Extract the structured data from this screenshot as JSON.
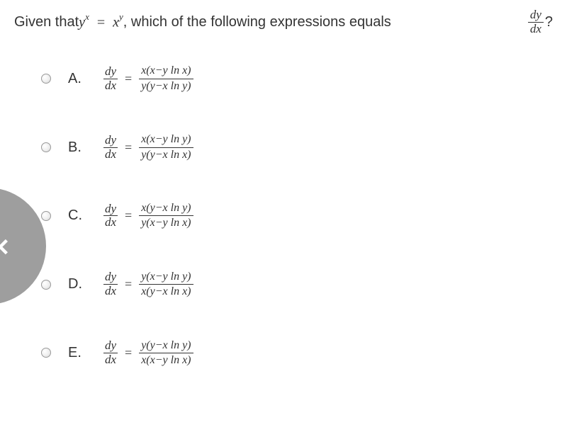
{
  "question": {
    "prefix": "Given that ",
    "lhs_base": "y",
    "lhs_exp": "x",
    "eq": " = ",
    "rhs_base": "x",
    "rhs_exp": "y",
    "middle": ", which of the following expressions equals ",
    "frac_num": "dy",
    "frac_den": "dx",
    "suffix": "?"
  },
  "derivative": {
    "num": "dy",
    "den": "dx"
  },
  "options": [
    {
      "label": "A.",
      "num": "x(x−y ln x)",
      "den": "y(y−x ln y)"
    },
    {
      "label": "B.",
      "num": "x(x−y ln y)",
      "den": "y(y−x ln x)"
    },
    {
      "label": "C.",
      "num": "x(y−x ln y)",
      "den": "y(x−y ln x)"
    },
    {
      "label": "D.",
      "num": "y(x−y ln y)",
      "den": "x(y−x ln x)"
    },
    {
      "label": "E.",
      "num": "y(y−x ln y)",
      "den": "x(x−y ln x)"
    }
  ],
  "widget": {
    "icon": "✕"
  }
}
